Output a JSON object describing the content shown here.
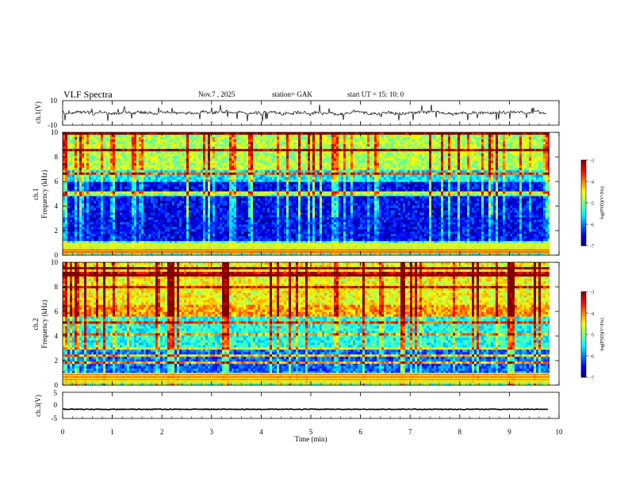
{
  "header": {
    "title": "VLF  Spectra",
    "date": "Nov.7   , 2025",
    "station": "station= GAK",
    "start": "start  UT  =    15: 10: 0"
  },
  "chart_data": [
    {
      "id": "ch1-waveform",
      "type": "line",
      "ylabel": "ch.1(V)",
      "ylim": [
        -10,
        10
      ],
      "yticks": [
        "10",
        "-10"
      ],
      "xlim": [
        0,
        10
      ],
      "baseline": 0,
      "series_note": "noisy waveform with occasional negative spikes"
    },
    {
      "id": "ch1-spectrogram",
      "type": "heatmap",
      "ylabel": "ch.1",
      "ylabel2": "Frequency  (kHz)",
      "ylim": [
        0,
        10
      ],
      "yticks": [
        "0",
        "2",
        "4",
        "6",
        "8",
        "10"
      ],
      "xlim": [
        0,
        9.83
      ],
      "colorbar": {
        "label": "log(PSD)(V²/Hz)",
        "range": [
          -7,
          -3
        ],
        "ticks": [
          "-3",
          "-4",
          "-5",
          "-6",
          "-7"
        ]
      }
    },
    {
      "id": "ch2-spectrogram",
      "type": "heatmap",
      "ylabel": "ch.2",
      "ylabel2": "Frequency  (kHz)",
      "ylim": [
        0,
        10
      ],
      "yticks": [
        "0",
        "2",
        "4",
        "6",
        "8",
        "10"
      ],
      "xlim": [
        0,
        9.83
      ],
      "colorbar": {
        "label": "log(PSD)(V²/Hz)",
        "range": [
          -7,
          -3
        ],
        "ticks": [
          "-3",
          "-4",
          "-5",
          "-6",
          "-7"
        ]
      }
    },
    {
      "id": "ch3-waveform",
      "type": "line",
      "ylabel": "ch.3(V)",
      "ylim": [
        -5,
        5
      ],
      "yticks": [
        "5",
        "0",
        "-5"
      ],
      "xlim": [
        0,
        10
      ],
      "baseline": -1.5
    }
  ],
  "xaxis": {
    "label": "Time  (min)",
    "ticks": [
      "0",
      "1",
      "2",
      "3",
      "4",
      "5",
      "6",
      "7",
      "8",
      "9",
      "10"
    ]
  }
}
